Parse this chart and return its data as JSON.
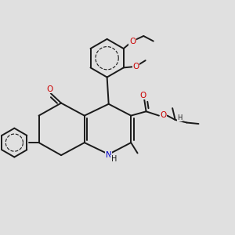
{
  "background_color": "#e0e0e0",
  "bond_color": "#1a1a1a",
  "bond_width": 1.4,
  "atom_colors": {
    "O": "#cc0000",
    "N": "#0000cc",
    "C": "#1a1a1a",
    "H": "#1a1a1a"
  },
  "font_size": 7.5,
  "fig_size": [
    3.0,
    3.0
  ],
  "dpi": 100
}
